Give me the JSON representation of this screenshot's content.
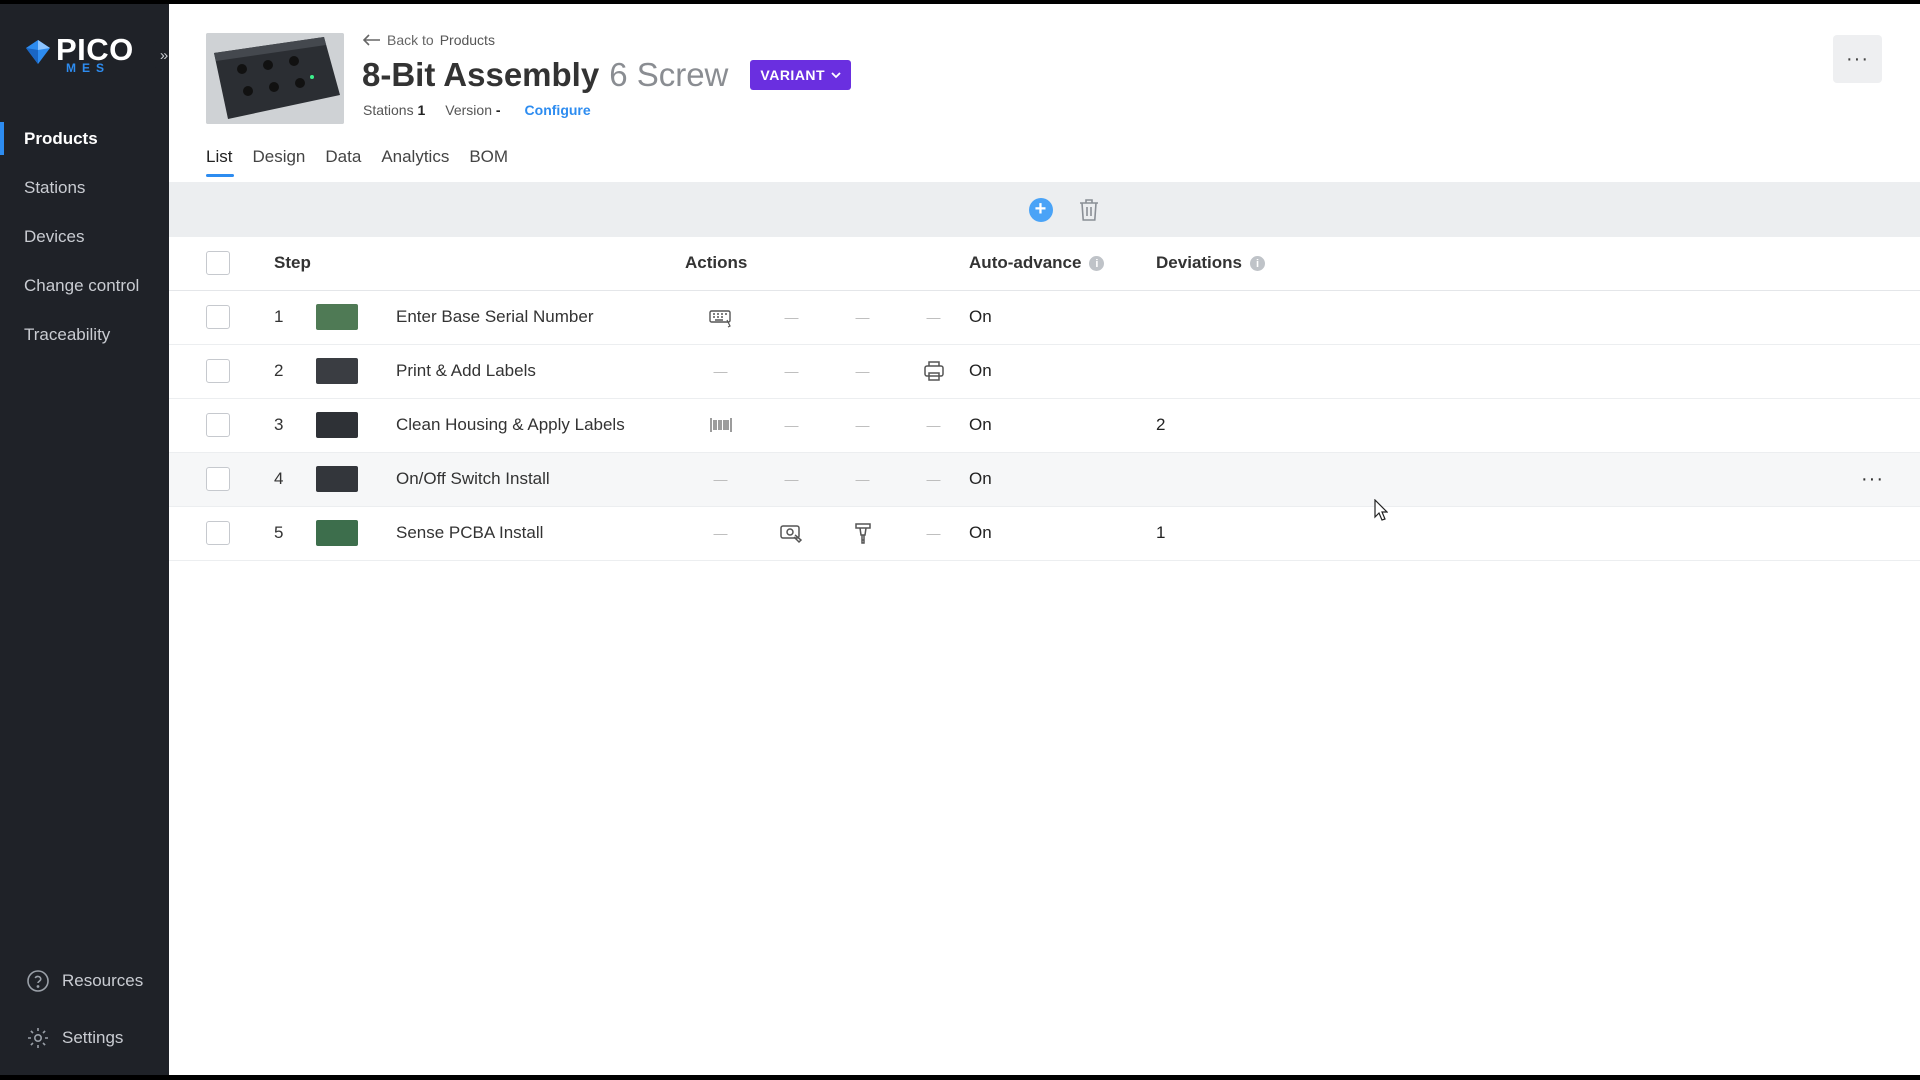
{
  "app": {
    "logo_word": "PICO",
    "logo_sub": "MES"
  },
  "sidebar": {
    "items": [
      {
        "label": "Products",
        "active": true
      },
      {
        "label": "Stations"
      },
      {
        "label": "Devices"
      },
      {
        "label": "Change control"
      },
      {
        "label": "Traceability"
      }
    ],
    "bottom": [
      {
        "label": "Resources",
        "icon": "help-circle-icon"
      },
      {
        "label": "Settings",
        "icon": "gear-icon"
      }
    ]
  },
  "header": {
    "back_label": "Back to",
    "back_target": "Products",
    "title": "8-Bit Assembly",
    "subtitle": "6 Screw",
    "badge": "VARIANT",
    "stations_label": "Stations",
    "stations_value": "1",
    "version_label": "Version",
    "version_value": "-",
    "configure_label": "Configure"
  },
  "tabs": [
    {
      "label": "List",
      "active": true
    },
    {
      "label": "Design"
    },
    {
      "label": "Data"
    },
    {
      "label": "Analytics"
    },
    {
      "label": "BOM"
    }
  ],
  "table": {
    "headers": {
      "step": "Step",
      "actions": "Actions",
      "auto_advance": "Auto-advance",
      "deviations": "Deviations"
    },
    "rows": [
      {
        "num": "1",
        "name": "Enter Base Serial Number",
        "actions": [
          "keyboard-icon",
          "-",
          "-",
          "-"
        ],
        "auto": "On",
        "deviations": "",
        "thumb": "#4f7a55"
      },
      {
        "num": "2",
        "name": "Print & Add Labels",
        "actions": [
          "-",
          "-",
          "-",
          "printer-icon"
        ],
        "auto": "On",
        "deviations": "",
        "thumb": "#3a3d42"
      },
      {
        "num": "3",
        "name": "Clean Housing & Apply Labels",
        "actions": [
          "barcode-icon",
          "-",
          "-",
          "-"
        ],
        "auto": "On",
        "deviations": "2",
        "thumb": "#2e3136"
      },
      {
        "num": "4",
        "name": "On/Off Switch Install",
        "actions": [
          "-",
          "-",
          "-",
          "-"
        ],
        "auto": "On",
        "deviations": "",
        "thumb": "#33363b",
        "hover": true
      },
      {
        "num": "5",
        "name": "Sense PCBA Install",
        "actions": [
          "-",
          "camera-icon",
          "screwdriver-icon",
          "-"
        ],
        "auto": "On",
        "deviations": "1",
        "thumb": "#3d6e4c"
      }
    ]
  },
  "colors": {
    "accent": "#2d8cf0",
    "badge": "#6a2fe0",
    "sidebar": "#1f2228"
  }
}
